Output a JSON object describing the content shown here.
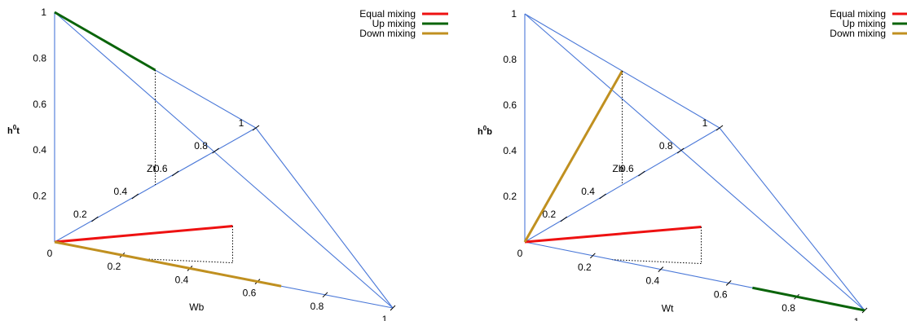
{
  "chart_data": [
    {
      "type": "line",
      "title": "",
      "projection": "3d-simplex",
      "axis_labels": {
        "vertical": "h",
        "vertical_sup": "0",
        "vertical_sub": "t",
        "depth": "Zt",
        "horizontal": "Wb"
      },
      "vertical_ticks": [
        "0.2",
        "0.4",
        "0.6",
        "0.8",
        "1"
      ],
      "depth_ticks": [
        "0.2",
        "0.4",
        "0.6",
        "0.8",
        "1"
      ],
      "horizontal_ticks": [
        "0.2",
        "0.4",
        "0.6",
        "0.8",
        "1"
      ],
      "origin_label": "0",
      "legend": [
        "Equal mixing",
        "Up mixing",
        "Down mixing"
      ],
      "series": [
        {
          "name": "Equal mixing",
          "color": "#ee1111",
          "points": [
            {
              "h": 0,
              "z": 0,
              "w": 0
            },
            {
              "h": 0,
              "z": 0.33,
              "w": 0.33
            }
          ]
        },
        {
          "name": "Up mixing",
          "color": "#0a640a",
          "points": [
            {
              "h": 0.5,
              "z": 0.5,
              "w": 0
            },
            {
              "h": 1,
              "z": 0,
              "w": 0
            }
          ]
        },
        {
          "name": "Down mixing",
          "color": "#c09020",
          "points": [
            {
              "h": 0,
              "z": 0,
              "w": 0
            },
            {
              "h": 0,
              "z": 0,
              "w": 0.67
            }
          ]
        }
      ]
    },
    {
      "type": "line",
      "title": "",
      "projection": "3d-simplex",
      "axis_labels": {
        "vertical": "h",
        "vertical_sup": "0",
        "vertical_sub": "b",
        "depth": "Zb",
        "horizontal": "Wt"
      },
      "vertical_ticks": [
        "0.2",
        "0.4",
        "0.6",
        "0.8",
        "1"
      ],
      "depth_ticks": [
        "0.2",
        "0.4",
        "0.6",
        "0.8",
        "1"
      ],
      "horizontal_ticks": [
        "0.2",
        "0.4",
        "0.6",
        "0.8",
        "1"
      ],
      "origin_label": "0",
      "legend": [
        "Equal mixing",
        "Up mixing",
        "Down mixing"
      ],
      "series": [
        {
          "name": "Equal mixing",
          "color": "#ee1111",
          "points": [
            {
              "h": 0,
              "z": 0,
              "w": 0
            },
            {
              "h": 0,
              "z": 0.33,
              "w": 0.33
            }
          ]
        },
        {
          "name": "Up mixing",
          "color": "#0a640a",
          "points": [
            {
              "h": 0,
              "z": 0,
              "w": 0.67
            },
            {
              "h": 0,
              "z": 0,
              "w": 1
            }
          ]
        },
        {
          "name": "Down mixing",
          "color": "#c09020",
          "points": [
            {
              "h": 0,
              "z": 0,
              "w": 0
            },
            {
              "h": 0.5,
              "z": 0.5,
              "w": 0
            }
          ]
        }
      ]
    }
  ]
}
